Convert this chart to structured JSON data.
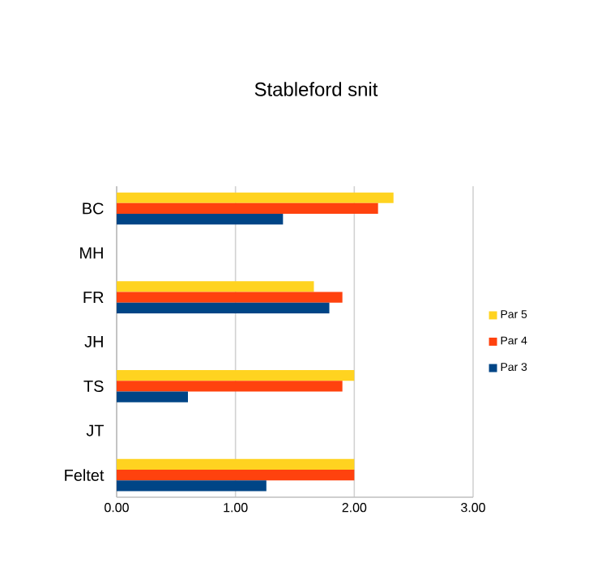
{
  "chart_data": {
    "type": "bar",
    "orientation": "horizontal",
    "title": "Stableford snit",
    "categories": [
      "BC",
      "MH",
      "FR",
      "JH",
      "TS",
      "JT",
      "Feltet"
    ],
    "series": [
      {
        "name": "Par 5",
        "color": "#ffd320",
        "values": [
          2.33,
          null,
          1.66,
          null,
          2.0,
          null,
          2.0
        ]
      },
      {
        "name": "Par 4",
        "color": "#ff420e",
        "values": [
          2.2,
          null,
          1.9,
          null,
          1.9,
          null,
          2.0
        ]
      },
      {
        "name": "Par 3",
        "color": "#004586",
        "values": [
          1.4,
          null,
          1.79,
          null,
          0.6,
          null,
          1.26
        ]
      }
    ],
    "xlim": [
      0,
      3
    ],
    "xticks": [
      {
        "value": 0,
        "label": "0.00"
      },
      {
        "value": 1,
        "label": "1.00"
      },
      {
        "value": 2,
        "label": "2.00"
      },
      {
        "value": 3,
        "label": "3.00"
      }
    ],
    "grid": "x",
    "legend": "right"
  }
}
